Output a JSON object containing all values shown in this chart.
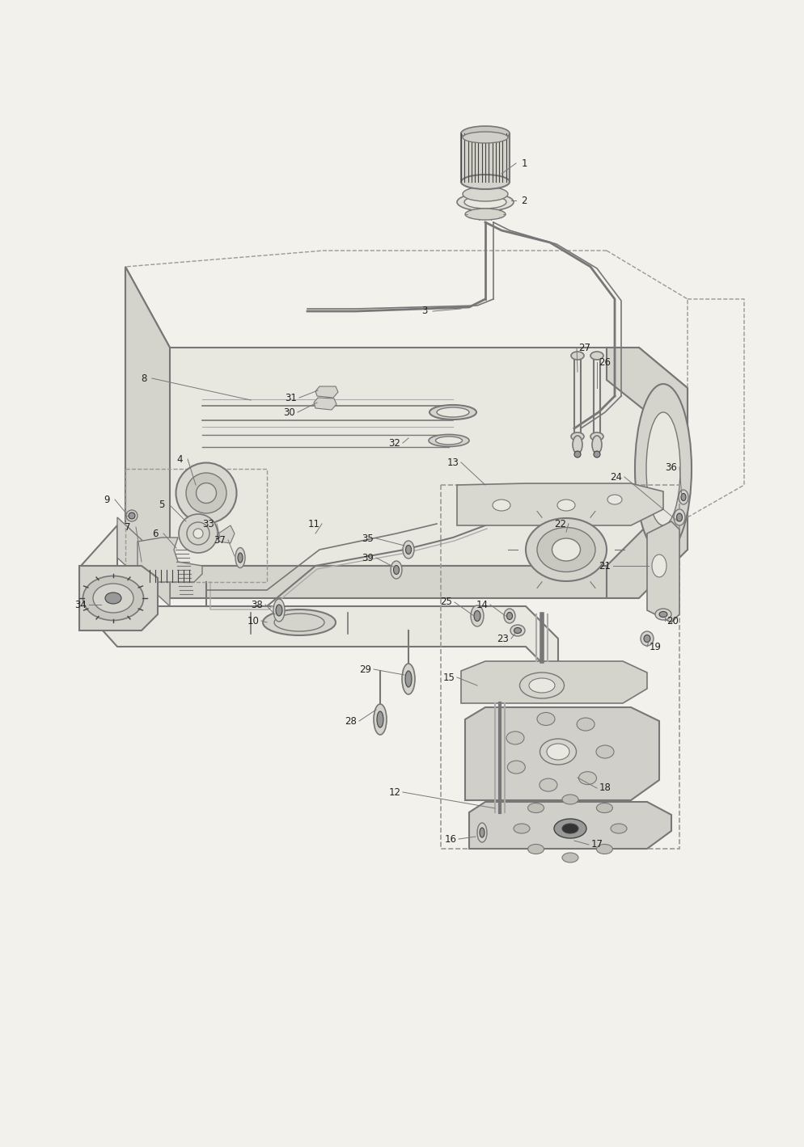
{
  "background_color": "#f2f1ec",
  "figure_width": 9.95,
  "figure_height": 14.19,
  "dpi": 100,
  "stroke": "#777777",
  "stroke_dark": "#444444",
  "stroke_light": "#aaaaaa",
  "fill_body": "#e8e7e0",
  "fill_mid": "#d4d3cc",
  "fill_dark": "#999999",
  "fill_black": "#333333",
  "label_color": "#222222",
  "label_fs": 8.5,
  "dashed_color": "#999999"
}
